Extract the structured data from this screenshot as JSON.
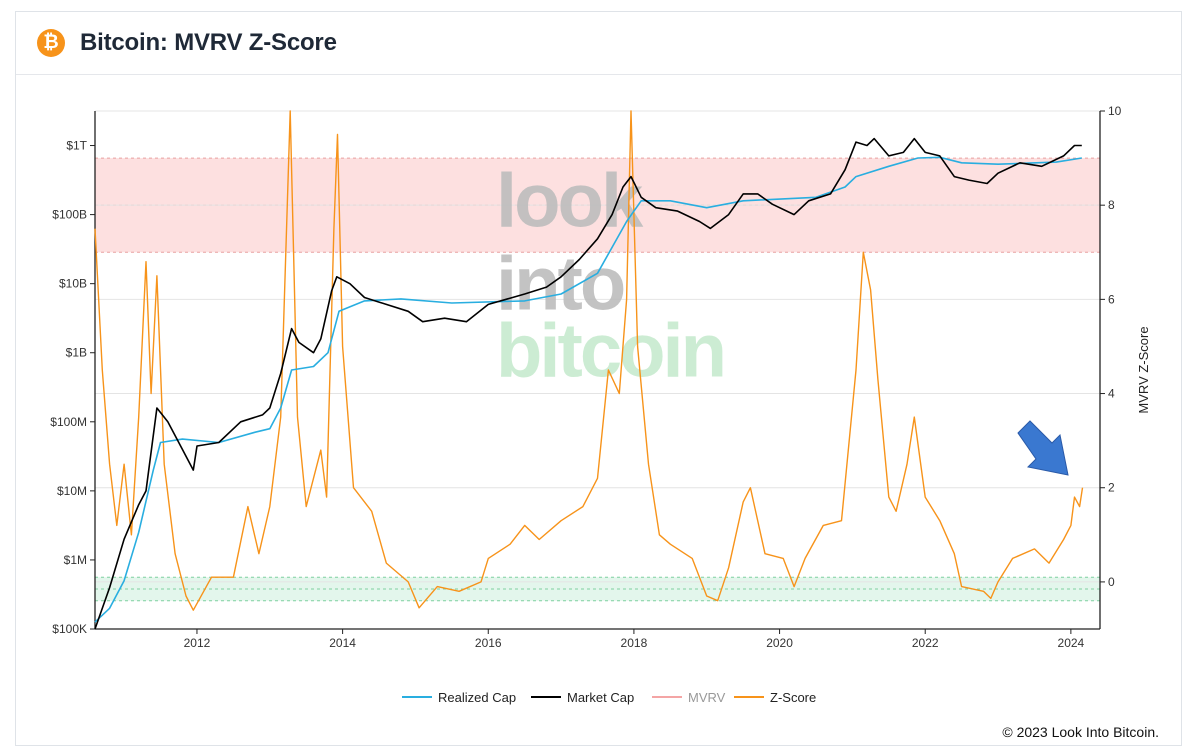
{
  "header": {
    "logo_glyph": "₿",
    "title": "Bitcoin: MVRV Z-Score"
  },
  "footer": {
    "copyright": "© 2023 Look Into Bitcoin."
  },
  "watermark": [
    "look",
    "into",
    "bitcoin"
  ],
  "colors": {
    "realized_cap": "#29aee0",
    "market_cap": "#000000",
    "mvrv": "#f4a5a5",
    "z_score": "#f7931a",
    "red_zone": "#fde0e0",
    "green_zone": "#e3f6ec",
    "arrow": "#3a78d0"
  },
  "chart_data": {
    "type": "line",
    "title": "Bitcoin: MVRV Z-Score",
    "x_ticks": [
      "2012",
      "2014",
      "2016",
      "2018",
      "2020",
      "2022",
      "2024"
    ],
    "x_range": [
      2010.6,
      2024.4
    ],
    "left_axis": {
      "scale": "log",
      "ticks": [
        "$100K",
        "$1M",
        "$10M",
        "$100M",
        "$1B",
        "$10B",
        "$100B",
        "$1T"
      ],
      "range_log10": [
        5,
        12.5
      ]
    },
    "right_axis": {
      "label": "MVRV Z-Score",
      "ticks": [
        "0",
        "2",
        "4",
        "6",
        "8",
        "10"
      ],
      "range": [
        -1,
        10
      ]
    },
    "zones": {
      "red": [
        7,
        9
      ],
      "green": [
        -0.4,
        0.1
      ]
    },
    "legend": {
      "position": "bottom",
      "entries": [
        "Realized Cap",
        "Market Cap",
        "MVRV",
        "Z-Score"
      ]
    },
    "series": [
      {
        "name": "Market Cap",
        "axis": "left",
        "points": [
          [
            2010.6,
            5.0
          ],
          [
            2010.8,
            5.6
          ],
          [
            2011.0,
            6.3
          ],
          [
            2011.2,
            6.8
          ],
          [
            2011.3,
            7.0
          ],
          [
            2011.45,
            8.2
          ],
          [
            2011.6,
            8.0
          ],
          [
            2011.8,
            7.6
          ],
          [
            2011.95,
            7.3
          ],
          [
            2012.0,
            7.65
          ],
          [
            2012.3,
            7.7
          ],
          [
            2012.6,
            8.0
          ],
          [
            2012.9,
            8.1
          ],
          [
            2013.0,
            8.2
          ],
          [
            2013.15,
            8.7
          ],
          [
            2013.3,
            9.35
          ],
          [
            2013.4,
            9.15
          ],
          [
            2013.6,
            9.0
          ],
          [
            2013.7,
            9.2
          ],
          [
            2013.85,
            9.9
          ],
          [
            2013.92,
            10.1
          ],
          [
            2014.1,
            10.0
          ],
          [
            2014.3,
            9.8
          ],
          [
            2014.6,
            9.7
          ],
          [
            2014.9,
            9.6
          ],
          [
            2015.1,
            9.45
          ],
          [
            2015.4,
            9.5
          ],
          [
            2015.7,
            9.45
          ],
          [
            2016.0,
            9.7
          ],
          [
            2016.5,
            9.85
          ],
          [
            2016.8,
            9.95
          ],
          [
            2017.0,
            10.1
          ],
          [
            2017.25,
            10.35
          ],
          [
            2017.5,
            10.65
          ],
          [
            2017.7,
            11.0
          ],
          [
            2017.85,
            11.4
          ],
          [
            2017.96,
            11.55
          ],
          [
            2018.1,
            11.25
          ],
          [
            2018.3,
            11.1
          ],
          [
            2018.6,
            11.05
          ],
          [
            2018.9,
            10.9
          ],
          [
            2019.05,
            10.8
          ],
          [
            2019.3,
            11.0
          ],
          [
            2019.5,
            11.3
          ],
          [
            2019.7,
            11.3
          ],
          [
            2019.9,
            11.15
          ],
          [
            2020.2,
            11.0
          ],
          [
            2020.4,
            11.2
          ],
          [
            2020.7,
            11.3
          ],
          [
            2020.9,
            11.65
          ],
          [
            2021.05,
            12.05
          ],
          [
            2021.2,
            12.0
          ],
          [
            2021.3,
            12.1
          ],
          [
            2021.5,
            11.85
          ],
          [
            2021.7,
            11.9
          ],
          [
            2021.85,
            12.1
          ],
          [
            2022.0,
            11.9
          ],
          [
            2022.2,
            11.85
          ],
          [
            2022.4,
            11.55
          ],
          [
            2022.6,
            11.5
          ],
          [
            2022.85,
            11.45
          ],
          [
            2023.0,
            11.6
          ],
          [
            2023.3,
            11.75
          ],
          [
            2023.6,
            11.7
          ],
          [
            2023.9,
            11.85
          ],
          [
            2024.05,
            12.0
          ],
          [
            2024.15,
            12.0
          ]
        ]
      },
      {
        "name": "Realized Cap",
        "axis": "left",
        "points": [
          [
            2010.6,
            5.1
          ],
          [
            2010.8,
            5.3
          ],
          [
            2011.0,
            5.7
          ],
          [
            2011.2,
            6.4
          ],
          [
            2011.4,
            7.3
          ],
          [
            2011.5,
            7.7
          ],
          [
            2011.8,
            7.75
          ],
          [
            2012.3,
            7.7
          ],
          [
            2012.8,
            7.85
          ],
          [
            2013.0,
            7.9
          ],
          [
            2013.15,
            8.2
          ],
          [
            2013.3,
            8.75
          ],
          [
            2013.6,
            8.8
          ],
          [
            2013.8,
            9.0
          ],
          [
            2013.95,
            9.6
          ],
          [
            2014.3,
            9.75
          ],
          [
            2014.8,
            9.78
          ],
          [
            2015.5,
            9.72
          ],
          [
            2016.5,
            9.75
          ],
          [
            2017.0,
            9.85
          ],
          [
            2017.5,
            10.15
          ],
          [
            2017.9,
            10.9
          ],
          [
            2018.1,
            11.2
          ],
          [
            2018.5,
            11.2
          ],
          [
            2019.0,
            11.1
          ],
          [
            2019.5,
            11.2
          ],
          [
            2020.5,
            11.25
          ],
          [
            2020.9,
            11.4
          ],
          [
            2021.05,
            11.55
          ],
          [
            2021.5,
            11.7
          ],
          [
            2021.9,
            11.82
          ],
          [
            2022.2,
            11.83
          ],
          [
            2022.5,
            11.75
          ],
          [
            2023.0,
            11.73
          ],
          [
            2023.8,
            11.76
          ],
          [
            2024.15,
            11.82
          ]
        ]
      },
      {
        "name": "Z-Score",
        "axis": "right",
        "points": [
          [
            2010.6,
            7.5
          ],
          [
            2010.7,
            4.5
          ],
          [
            2010.8,
            2.5
          ],
          [
            2010.9,
            1.2
          ],
          [
            2011.0,
            2.5
          ],
          [
            2011.1,
            1.0
          ],
          [
            2011.2,
            3.5
          ],
          [
            2011.3,
            6.8
          ],
          [
            2011.37,
            4.0
          ],
          [
            2011.45,
            6.5
          ],
          [
            2011.55,
            2.5
          ],
          [
            2011.7,
            0.6
          ],
          [
            2011.85,
            -0.3
          ],
          [
            2011.95,
            -0.6
          ],
          [
            2012.2,
            0.1
          ],
          [
            2012.5,
            0.1
          ],
          [
            2012.7,
            1.6
          ],
          [
            2012.85,
            0.6
          ],
          [
            2013.0,
            1.6
          ],
          [
            2013.15,
            3.5
          ],
          [
            2013.28,
            10.0
          ],
          [
            2013.38,
            3.5
          ],
          [
            2013.5,
            1.6
          ],
          [
            2013.7,
            2.8
          ],
          [
            2013.78,
            1.8
          ],
          [
            2013.88,
            7.5
          ],
          [
            2013.93,
            9.5
          ],
          [
            2014.0,
            5.0
          ],
          [
            2014.15,
            2.0
          ],
          [
            2014.4,
            1.5
          ],
          [
            2014.6,
            0.4
          ],
          [
            2014.9,
            0.0
          ],
          [
            2015.05,
            -0.55
          ],
          [
            2015.3,
            -0.1
          ],
          [
            2015.6,
            -0.2
          ],
          [
            2015.9,
            0.0
          ],
          [
            2016.0,
            0.5
          ],
          [
            2016.3,
            0.8
          ],
          [
            2016.5,
            1.2
          ],
          [
            2016.7,
            0.9
          ],
          [
            2017.0,
            1.3
          ],
          [
            2017.3,
            1.6
          ],
          [
            2017.5,
            2.2
          ],
          [
            2017.65,
            4.5
          ],
          [
            2017.8,
            4.0
          ],
          [
            2017.9,
            6.0
          ],
          [
            2017.96,
            10.0
          ],
          [
            2018.05,
            5.0
          ],
          [
            2018.2,
            2.5
          ],
          [
            2018.35,
            1.0
          ],
          [
            2018.5,
            0.8
          ],
          [
            2018.8,
            0.5
          ],
          [
            2019.0,
            -0.3
          ],
          [
            2019.15,
            -0.4
          ],
          [
            2019.3,
            0.3
          ],
          [
            2019.5,
            1.7
          ],
          [
            2019.6,
            2.0
          ],
          [
            2019.8,
            0.6
          ],
          [
            2020.05,
            0.5
          ],
          [
            2020.2,
            -0.1
          ],
          [
            2020.35,
            0.5
          ],
          [
            2020.6,
            1.2
          ],
          [
            2020.85,
            1.3
          ],
          [
            2021.05,
            4.5
          ],
          [
            2021.15,
            7.0
          ],
          [
            2021.25,
            6.2
          ],
          [
            2021.35,
            4.3
          ],
          [
            2021.5,
            1.8
          ],
          [
            2021.6,
            1.5
          ],
          [
            2021.75,
            2.5
          ],
          [
            2021.85,
            3.5
          ],
          [
            2022.0,
            1.8
          ],
          [
            2022.2,
            1.3
          ],
          [
            2022.4,
            0.6
          ],
          [
            2022.5,
            -0.1
          ],
          [
            2022.8,
            -0.2
          ],
          [
            2022.9,
            -0.35
          ],
          [
            2023.0,
            0.0
          ],
          [
            2023.2,
            0.5
          ],
          [
            2023.5,
            0.7
          ],
          [
            2023.7,
            0.4
          ],
          [
            2023.9,
            0.9
          ],
          [
            2024.0,
            1.2
          ],
          [
            2024.05,
            1.8
          ],
          [
            2024.12,
            1.6
          ],
          [
            2024.16,
            2.0
          ]
        ]
      }
    ]
  }
}
